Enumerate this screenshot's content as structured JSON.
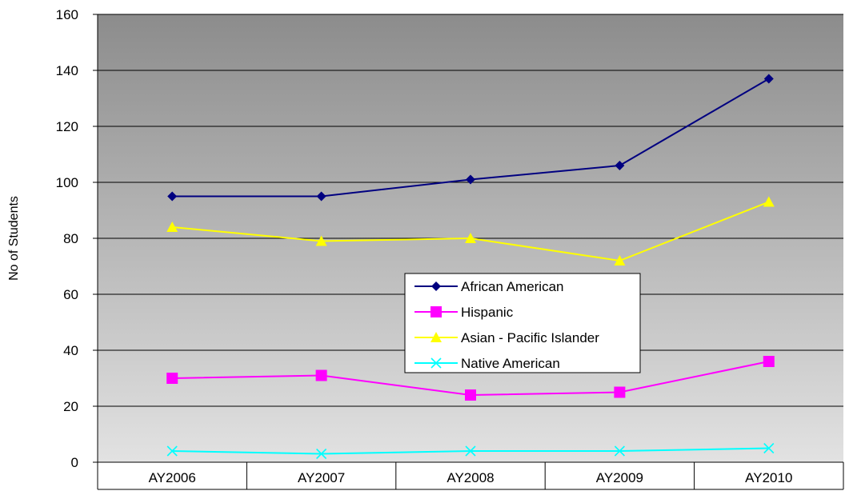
{
  "chart_data": {
    "type": "line",
    "title": "",
    "xlabel": "",
    "ylabel": "No of Students",
    "ylim": [
      0,
      160
    ],
    "yticks": [
      0,
      20,
      40,
      60,
      80,
      100,
      120,
      140,
      160
    ],
    "grid": true,
    "legend_position": "center",
    "categories": [
      "AY2006",
      "AY2007",
      "AY2008",
      "AY2009",
      "AY2010"
    ],
    "series": [
      {
        "name": "African American",
        "color": "#000080",
        "marker": "diamond",
        "values": [
          95,
          95,
          101,
          106,
          137
        ]
      },
      {
        "name": "Hispanic",
        "color": "#FF00FF",
        "marker": "square",
        "values": [
          30,
          31,
          24,
          25,
          36
        ]
      },
      {
        "name": "Asian - Pacific Islander",
        "color": "#FFFF00",
        "marker": "triangle",
        "values": [
          84,
          79,
          80,
          72,
          93
        ]
      },
      {
        "name": "Native American",
        "color": "#00FFFF",
        "marker": "x",
        "values": [
          4,
          3,
          4,
          4,
          5
        ]
      }
    ]
  }
}
